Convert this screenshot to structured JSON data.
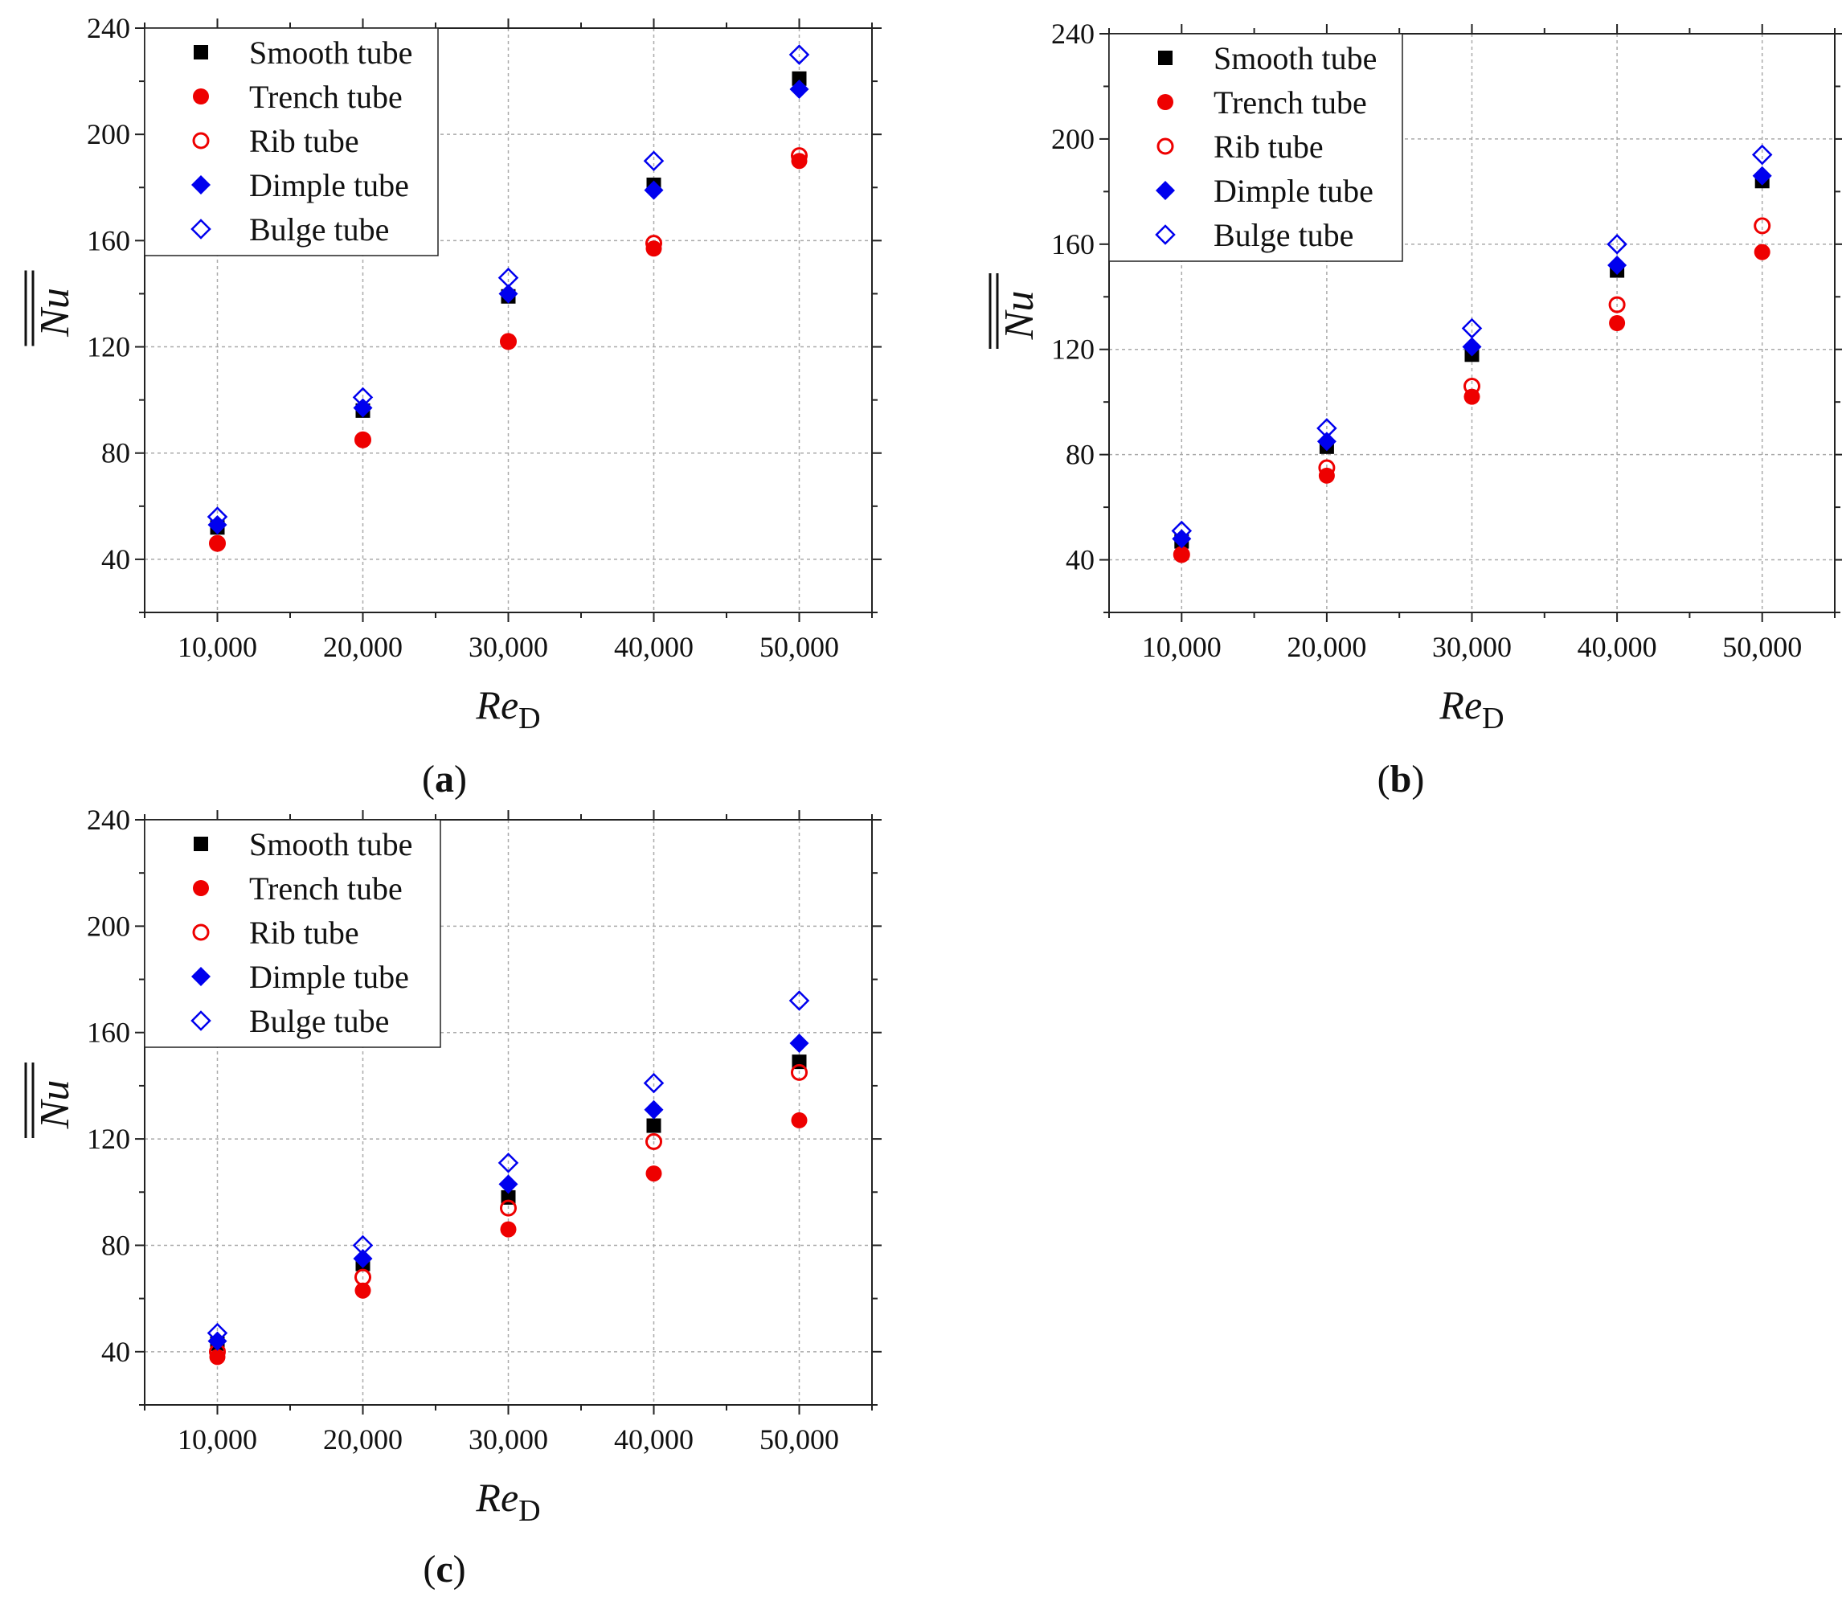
{
  "chart_data": [
    {
      "type": "scatter",
      "panel_label": "a",
      "xlabel": "Re",
      "xlabel_sub": "D",
      "ylabel": "Nu",
      "xlim": [
        5000,
        55000
      ],
      "ylim": [
        20,
        240
      ],
      "xticks": [
        "10,000",
        "20,000",
        "30,000",
        "40,000",
        "50,000"
      ],
      "yticks": [
        "40",
        "80",
        "120",
        "160",
        "200",
        "240"
      ],
      "grid": true,
      "legend": "top-left",
      "x": [
        10000,
        20000,
        30000,
        40000,
        50000
      ],
      "series": [
        {
          "name": "Smooth tube",
          "marker": "square-filled",
          "color": "#000000",
          "values": [
            52,
            96,
            139,
            181,
            221
          ]
        },
        {
          "name": "Trench tube",
          "marker": "circle-filled",
          "color": "#ee0000",
          "values": [
            46,
            85,
            122,
            157,
            190
          ]
        },
        {
          "name": "Rib tube",
          "marker": "circle-open",
          "color": "#ee0000",
          "values": [
            46,
            85,
            122,
            159,
            192
          ]
        },
        {
          "name": "Dimple tube",
          "marker": "diamond-filled",
          "color": "#0000ee",
          "values": [
            53,
            97,
            140,
            179,
            217
          ]
        },
        {
          "name": "Bulge tube",
          "marker": "diamond-open",
          "color": "#0000ee",
          "values": [
            56,
            101,
            146,
            190,
            230
          ]
        }
      ]
    },
    {
      "type": "scatter",
      "panel_label": "b",
      "xlabel": "Re",
      "xlabel_sub": "D",
      "ylabel": "Nu",
      "xlim": [
        5000,
        55000
      ],
      "ylim": [
        20,
        240
      ],
      "xticks": [
        "10,000",
        "20,000",
        "30,000",
        "40,000",
        "50,000"
      ],
      "yticks": [
        "40",
        "80",
        "120",
        "160",
        "200",
        "240"
      ],
      "grid": true,
      "legend": "top-left",
      "x": [
        10000,
        20000,
        30000,
        40000,
        50000
      ],
      "series": [
        {
          "name": "Smooth tube",
          "marker": "square-filled",
          "color": "#000000",
          "values": [
            47,
            83,
            118,
            150,
            184
          ]
        },
        {
          "name": "Trench tube",
          "marker": "circle-filled",
          "color": "#ee0000",
          "values": [
            42,
            72,
            102,
            130,
            157
          ]
        },
        {
          "name": "Rib tube",
          "marker": "circle-open",
          "color": "#ee0000",
          "values": [
            42,
            75,
            106,
            137,
            167
          ]
        },
        {
          "name": "Dimple tube",
          "marker": "diamond-filled",
          "color": "#0000ee",
          "values": [
            48,
            85,
            121,
            152,
            186
          ]
        },
        {
          "name": "Bulge tube",
          "marker": "diamond-open",
          "color": "#0000ee",
          "values": [
            51,
            90,
            128,
            160,
            194
          ]
        }
      ]
    },
    {
      "type": "scatter",
      "panel_label": "c",
      "xlabel": "Re",
      "xlabel_sub": "D",
      "ylabel": "Nu",
      "xlim": [
        5000,
        55000
      ],
      "ylim": [
        20,
        240
      ],
      "xticks": [
        "10,000",
        "20,000",
        "30,000",
        "40,000",
        "50,000"
      ],
      "yticks": [
        "40",
        "80",
        "120",
        "160",
        "200",
        "240"
      ],
      "grid": true,
      "legend": "top-left",
      "x": [
        10000,
        20000,
        30000,
        40000,
        50000
      ],
      "series": [
        {
          "name": "Smooth tube",
          "marker": "square-filled",
          "color": "#000000",
          "values": [
            43,
            73,
            98,
            125,
            149
          ]
        },
        {
          "name": "Trench tube",
          "marker": "circle-filled",
          "color": "#ee0000",
          "values": [
            38,
            63,
            86,
            107,
            127
          ]
        },
        {
          "name": "Rib tube",
          "marker": "circle-open",
          "color": "#ee0000",
          "values": [
            40,
            68,
            94,
            119,
            145
          ]
        },
        {
          "name": "Dimple tube",
          "marker": "diamond-filled",
          "color": "#0000ee",
          "values": [
            44,
            75,
            103,
            131,
            156
          ]
        },
        {
          "name": "Bulge tube",
          "marker": "diamond-open",
          "color": "#0000ee",
          "values": [
            47,
            80,
            111,
            141,
            172
          ]
        }
      ]
    }
  ]
}
